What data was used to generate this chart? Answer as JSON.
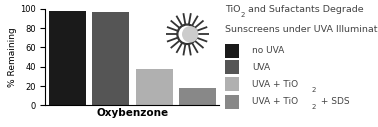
{
  "values": [
    98,
    97,
    38,
    18
  ],
  "bar_colors": [
    "#1a1a1a",
    "#555555",
    "#b0b0b0",
    "#888888"
  ],
  "xlabel": "Oxybenzone",
  "ylabel": "% Remaining",
  "ylim": [
    0,
    100
  ],
  "yticks": [
    0,
    20,
    40,
    60,
    80,
    100
  ],
  "legend_colors": [
    "#1a1a1a",
    "#555555",
    "#b0b0b0",
    "#888888"
  ],
  "text_color": "#444444",
  "title1_pre": "TiO",
  "title1_sub": "2",
  "title1_post": " and Sufactants Degrade",
  "title2": "Sunscreens under UVA Illumination",
  "leg0": "no UVA",
  "leg1": "UVA",
  "leg2_pre": "UVA + TiO",
  "leg2_sub": "2",
  "leg3_pre": "UVA + TiO",
  "leg3_sub": "2",
  "leg3_post": " + SDS",
  "sun_rays": 18,
  "sun_inner_r": 0.52,
  "sun_outer_r": 1.1,
  "sun_circle_r": 0.48
}
